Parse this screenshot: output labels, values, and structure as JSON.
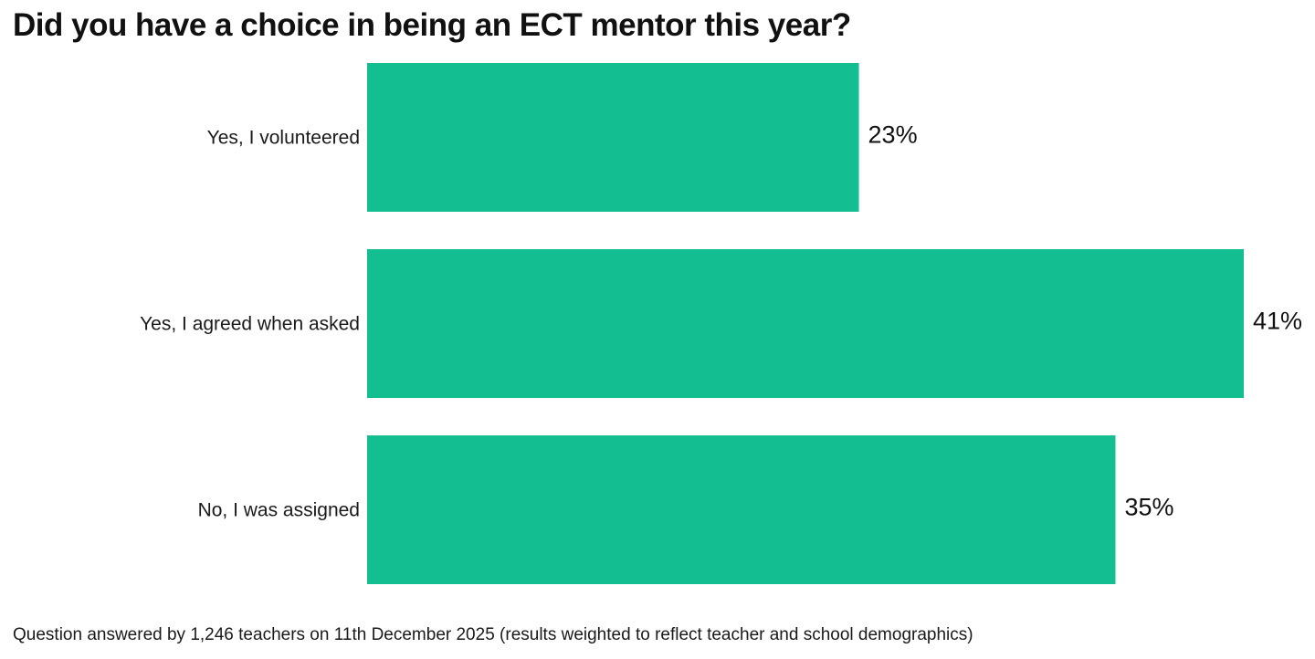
{
  "chart_data": {
    "type": "bar",
    "orientation": "horizontal",
    "title": "Did you have a choice in being an ECT mentor this year?",
    "categories": [
      "Yes, I volunteered",
      "Yes, I agreed when asked",
      "No, I was assigned"
    ],
    "values": [
      23,
      41,
      35
    ],
    "value_labels": [
      "23%",
      "41%",
      "35%"
    ],
    "unit": "%",
    "bar_color": "#13be91",
    "xlim": [
      0,
      41
    ],
    "grid": false,
    "legend": "none",
    "footnote": "Question answered by 1,246 teachers on 11th December 2025 (results weighted to reflect teacher and school demographics)"
  }
}
